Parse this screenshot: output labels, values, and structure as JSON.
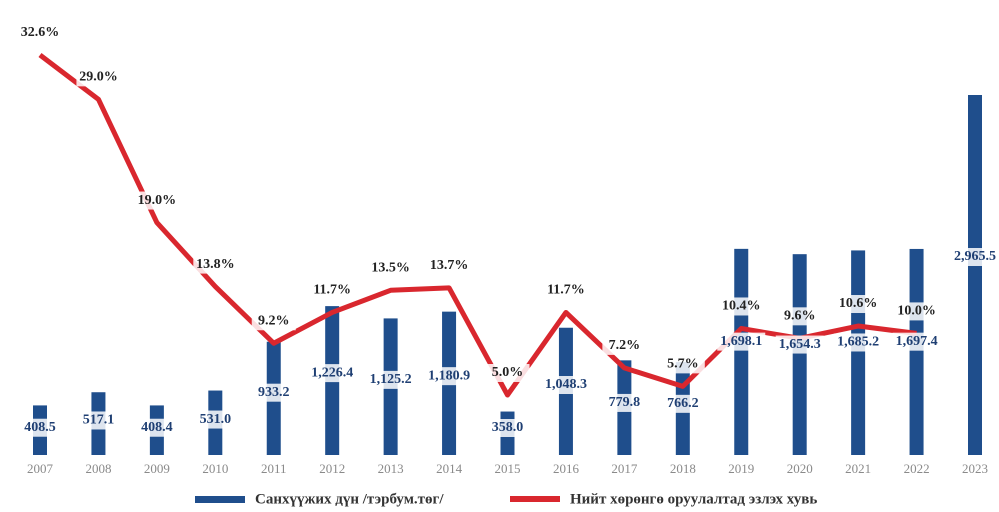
{
  "chart_data": {
    "type": "bar-line",
    "categories": [
      "2007",
      "2008",
      "2009",
      "2010",
      "2011",
      "2012",
      "2013",
      "2014",
      "2015",
      "2016",
      "2017",
      "2018",
      "2019",
      "2020",
      "2021",
      "2022",
      "2023"
    ],
    "series": [
      {
        "name": "Санхүүжих дүн /тэрбум.төг/",
        "color": "#1f4e8c",
        "type": "bar",
        "values": [
          408.5,
          517.1,
          408.4,
          531.0,
          933.2,
          1226.4,
          1125.2,
          1180.9,
          358.0,
          1048.3,
          779.8,
          766.2,
          1698.1,
          1654.3,
          1685.2,
          1697.4,
          2965.5
        ],
        "value_labels": [
          "408.5",
          "517.1",
          "408.4",
          "531.0",
          "933.2",
          "1,226.4",
          "1,125.2",
          "1,180.9",
          "358.0",
          "1,048.3",
          "779.8",
          "766.2",
          "1,698.1",
          "1,654.3",
          "1,685.2",
          "1,697.4",
          "2,965.5"
        ]
      },
      {
        "name": "Нийт хөрөнгө оруулалтад эзлэх хувь",
        "color": "#d9272e",
        "type": "line",
        "axis": "y2",
        "values": [
          32.6,
          29.0,
          19.0,
          13.8,
          9.2,
          11.7,
          13.5,
          13.7,
          5.0,
          11.7,
          7.2,
          5.7,
          10.4,
          9.6,
          10.6,
          10.0,
          null
        ],
        "value_labels": [
          "32.6%",
          "29.0%",
          "19.0%",
          "13.8%",
          "9.2%",
          "11.7%",
          "13.5%",
          "13.7%",
          "5.0%",
          "11.7%",
          "7.2%",
          "5.7%",
          "10.4%",
          "9.6%",
          "10.6%",
          "10.0%",
          null
        ]
      }
    ]
  }
}
